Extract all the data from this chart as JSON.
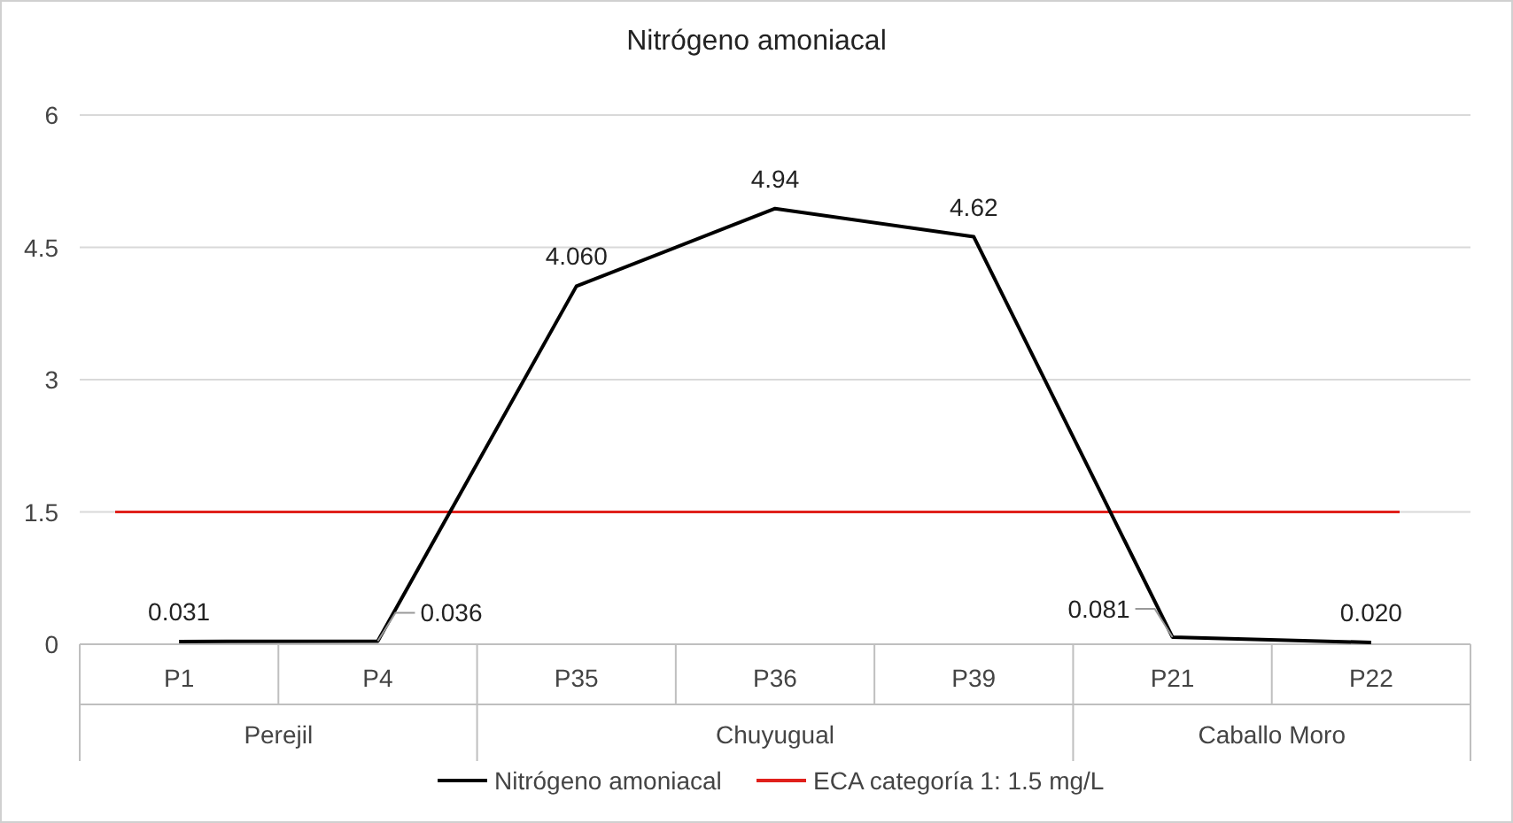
{
  "chart_data": {
    "type": "line",
    "title": "Nitrógeno amoniacal",
    "categories": [
      "P1",
      "P4",
      "P35",
      "P36",
      "P39",
      "P21",
      "P22"
    ],
    "series": [
      {
        "name": "Nitrógeno amoniacal",
        "color": "#000000",
        "values": [
          0.031,
          0.036,
          4.06,
          4.94,
          4.62,
          0.081,
          0.02
        ],
        "value_labels": [
          "0.031",
          "0.036",
          "4.060",
          "4.94",
          "4.62",
          "0.081",
          "0.020"
        ]
      }
    ],
    "ref_lines": [
      {
        "axis": "y",
        "value": 1.5,
        "label": "ECA categoría 1: 1.5 mg/L",
        "color": "#e0201b"
      }
    ],
    "annotations": [
      "Perejil",
      "Chuyugual",
      "Caballo Moro"
    ],
    "ylim": [
      0,
      6
    ],
    "yticks": [
      0,
      1.5,
      3,
      4.5,
      6
    ],
    "grid": "y",
    "legend": "bottom",
    "marker": "none",
    "line_style": "solid"
  }
}
